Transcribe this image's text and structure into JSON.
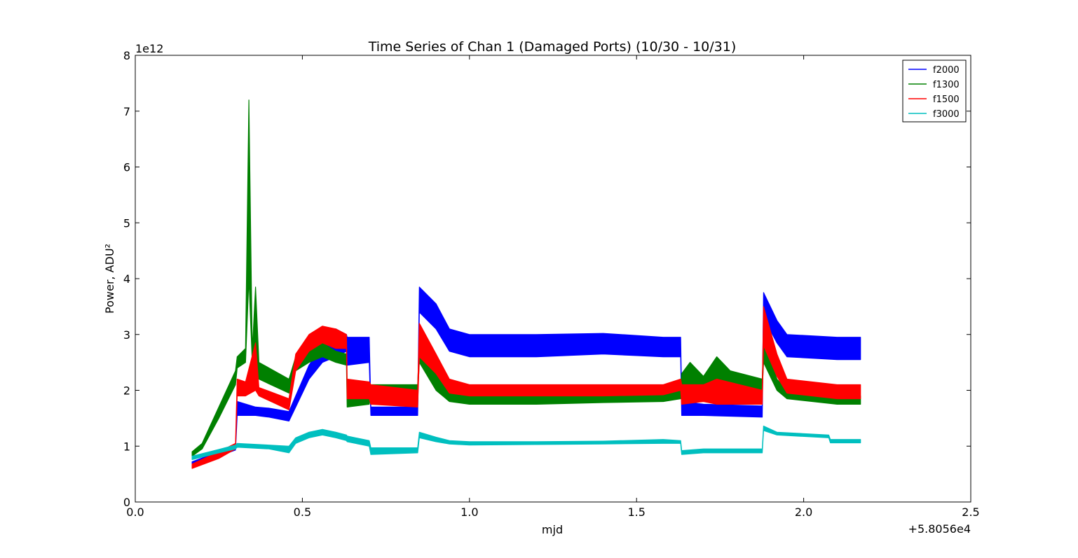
{
  "chart_data": {
    "type": "line",
    "title": "Time Series of Chan 1 (Damaged Ports) (10/30 - 10/31)",
    "xlabel": "mjd",
    "ylabel": "Power, ADU²",
    "x_offset_label": "+5.8056e4",
    "y_exponent_label": "1e12",
    "xlim": [
      0.0,
      2.5
    ],
    "ylim": [
      0,
      8
    ],
    "x_ticks": [
      0.0,
      0.5,
      1.0,
      1.5,
      2.0,
      2.5
    ],
    "x_tick_labels": [
      "0.0",
      "0.5",
      "1.0",
      "1.5",
      "2.0",
      "2.5"
    ],
    "y_ticks": [
      0,
      1,
      2,
      3,
      4,
      5,
      6,
      7,
      8
    ],
    "y_tick_labels": [
      "0",
      "1",
      "2",
      "3",
      "4",
      "5",
      "6",
      "7",
      "8"
    ],
    "grid": false,
    "legend_position": "top-right",
    "series": [
      {
        "name": "f2000",
        "color": "#0000ff",
        "points": [
          [
            0.17,
            0.67,
            0.72
          ],
          [
            0.25,
            0.82,
            0.9
          ],
          [
            0.3,
            0.93,
            1.0
          ],
          [
            0.305,
            1.55,
            1.8
          ],
          [
            0.36,
            1.55,
            1.7
          ],
          [
            0.4,
            1.52,
            1.68
          ],
          [
            0.46,
            1.45,
            1.62
          ],
          [
            0.48,
            1.7,
            1.9
          ],
          [
            0.52,
            2.2,
            2.45
          ],
          [
            0.56,
            2.5,
            2.8
          ],
          [
            0.6,
            2.6,
            3.1
          ],
          [
            0.632,
            2.7,
            3.0
          ],
          [
            0.634,
            2.45,
            2.95
          ],
          [
            0.7,
            2.5,
            2.95
          ],
          [
            0.705,
            1.55,
            1.7
          ],
          [
            0.845,
            1.55,
            1.7
          ],
          [
            0.85,
            3.4,
            3.85
          ],
          [
            0.9,
            3.1,
            3.55
          ],
          [
            0.94,
            2.7,
            3.1
          ],
          [
            1.0,
            2.6,
            3.0
          ],
          [
            1.2,
            2.6,
            3.0
          ],
          [
            1.4,
            2.65,
            3.02
          ],
          [
            1.58,
            2.6,
            2.95
          ],
          [
            1.632,
            2.6,
            2.95
          ],
          [
            1.635,
            1.55,
            1.8
          ],
          [
            1.7,
            1.55,
            1.75
          ],
          [
            1.876,
            1.52,
            1.72
          ],
          [
            1.88,
            3.3,
            3.75
          ],
          [
            1.92,
            2.85,
            3.25
          ],
          [
            1.95,
            2.6,
            3.0
          ],
          [
            2.1,
            2.55,
            2.95
          ],
          [
            2.17,
            2.55,
            2.95
          ]
        ]
      },
      {
        "name": "f1300",
        "color": "#008000",
        "points": [
          [
            0.17,
            0.82,
            0.9
          ],
          [
            0.2,
            0.95,
            1.05
          ],
          [
            0.25,
            1.5,
            1.7
          ],
          [
            0.3,
            2.1,
            2.35
          ],
          [
            0.305,
            2.4,
            2.6
          ],
          [
            0.33,
            2.5,
            2.75
          ],
          [
            0.34,
            4.0,
            7.2
          ],
          [
            0.35,
            2.5,
            2.7
          ],
          [
            0.36,
            2.3,
            3.85
          ],
          [
            0.37,
            2.2,
            2.5
          ],
          [
            0.46,
            1.95,
            2.2
          ],
          [
            0.48,
            2.35,
            2.6
          ],
          [
            0.52,
            2.5,
            2.7
          ],
          [
            0.56,
            2.6,
            2.85
          ],
          [
            0.6,
            2.5,
            2.7
          ],
          [
            0.632,
            2.45,
            2.65
          ],
          [
            0.634,
            1.7,
            1.9
          ],
          [
            0.7,
            1.75,
            1.95
          ],
          [
            0.705,
            1.9,
            2.1
          ],
          [
            0.845,
            1.9,
            2.1
          ],
          [
            0.85,
            2.5,
            2.85
          ],
          [
            0.9,
            2.0,
            2.3
          ],
          [
            0.94,
            1.8,
            1.95
          ],
          [
            1.0,
            1.75,
            1.9
          ],
          [
            1.2,
            1.75,
            1.9
          ],
          [
            1.4,
            1.78,
            1.92
          ],
          [
            1.58,
            1.8,
            1.95
          ],
          [
            1.632,
            1.85,
            2.0
          ],
          [
            1.635,
            2.0,
            2.3
          ],
          [
            1.66,
            2.0,
            2.5
          ],
          [
            1.7,
            2.0,
            2.25
          ],
          [
            1.74,
            2.0,
            2.6
          ],
          [
            1.78,
            2.0,
            2.35
          ],
          [
            1.876,
            2.0,
            2.2
          ],
          [
            1.88,
            2.5,
            2.9
          ],
          [
            1.92,
            2.0,
            2.2
          ],
          [
            1.95,
            1.85,
            2.0
          ],
          [
            2.1,
            1.75,
            1.9
          ],
          [
            2.17,
            1.75,
            1.9
          ]
        ]
      },
      {
        "name": "f1500",
        "color": "#ff0000",
        "points": [
          [
            0.17,
            0.6,
            0.68
          ],
          [
            0.25,
            0.78,
            0.9
          ],
          [
            0.3,
            0.95,
            1.05
          ],
          [
            0.305,
            1.9,
            2.2
          ],
          [
            0.33,
            1.9,
            2.15
          ],
          [
            0.36,
            2.0,
            2.85
          ],
          [
            0.37,
            1.9,
            2.05
          ],
          [
            0.46,
            1.65,
            1.85
          ],
          [
            0.48,
            2.35,
            2.65
          ],
          [
            0.52,
            2.7,
            3.0
          ],
          [
            0.56,
            2.85,
            3.15
          ],
          [
            0.6,
            2.75,
            3.1
          ],
          [
            0.632,
            2.75,
            3.0
          ],
          [
            0.634,
            1.85,
            2.2
          ],
          [
            0.7,
            1.85,
            2.15
          ],
          [
            0.705,
            1.75,
            2.1
          ],
          [
            0.845,
            1.7,
            2.0
          ],
          [
            0.85,
            2.6,
            3.2
          ],
          [
            0.9,
            2.3,
            2.65
          ],
          [
            0.94,
            1.95,
            2.2
          ],
          [
            1.0,
            1.9,
            2.1
          ],
          [
            1.2,
            1.9,
            2.1
          ],
          [
            1.4,
            1.9,
            2.1
          ],
          [
            1.58,
            1.92,
            2.1
          ],
          [
            1.632,
            2.0,
            2.2
          ],
          [
            1.635,
            1.75,
            2.1
          ],
          [
            1.7,
            1.8,
            2.1
          ],
          [
            1.74,
            1.75,
            2.2
          ],
          [
            1.876,
            1.75,
            2.0
          ],
          [
            1.88,
            2.8,
            3.5
          ],
          [
            1.92,
            2.25,
            2.65
          ],
          [
            1.95,
            1.95,
            2.2
          ],
          [
            2.1,
            1.85,
            2.1
          ],
          [
            2.17,
            1.85,
            2.1
          ]
        ]
      },
      {
        "name": "f3000",
        "color": "#00bfbf",
        "points": [
          [
            0.17,
            0.76,
            0.82
          ],
          [
            0.25,
            0.88,
            0.94
          ],
          [
            0.3,
            0.95,
            1.02
          ],
          [
            0.305,
            0.98,
            1.05
          ],
          [
            0.4,
            0.95,
            1.02
          ],
          [
            0.46,
            0.88,
            1.0
          ],
          [
            0.48,
            1.05,
            1.15
          ],
          [
            0.52,
            1.15,
            1.25
          ],
          [
            0.56,
            1.2,
            1.3
          ],
          [
            0.6,
            1.15,
            1.25
          ],
          [
            0.632,
            1.1,
            1.2
          ],
          [
            0.634,
            1.08,
            1.18
          ],
          [
            0.7,
            1.0,
            1.1
          ],
          [
            0.705,
            0.85,
            0.97
          ],
          [
            0.845,
            0.88,
            0.97
          ],
          [
            0.85,
            1.15,
            1.25
          ],
          [
            0.9,
            1.08,
            1.16
          ],
          [
            0.94,
            1.04,
            1.1
          ],
          [
            1.0,
            1.02,
            1.08
          ],
          [
            1.2,
            1.03,
            1.08
          ],
          [
            1.4,
            1.04,
            1.09
          ],
          [
            1.58,
            1.05,
            1.12
          ],
          [
            1.632,
            1.05,
            1.1
          ],
          [
            1.635,
            0.85,
            0.92
          ],
          [
            1.7,
            0.88,
            0.95
          ],
          [
            1.876,
            0.88,
            0.95
          ],
          [
            1.88,
            1.28,
            1.36
          ],
          [
            1.92,
            1.2,
            1.25
          ],
          [
            2.075,
            1.15,
            1.2
          ],
          [
            2.08,
            1.06,
            1.12
          ],
          [
            2.17,
            1.06,
            1.12
          ]
        ]
      }
    ]
  }
}
